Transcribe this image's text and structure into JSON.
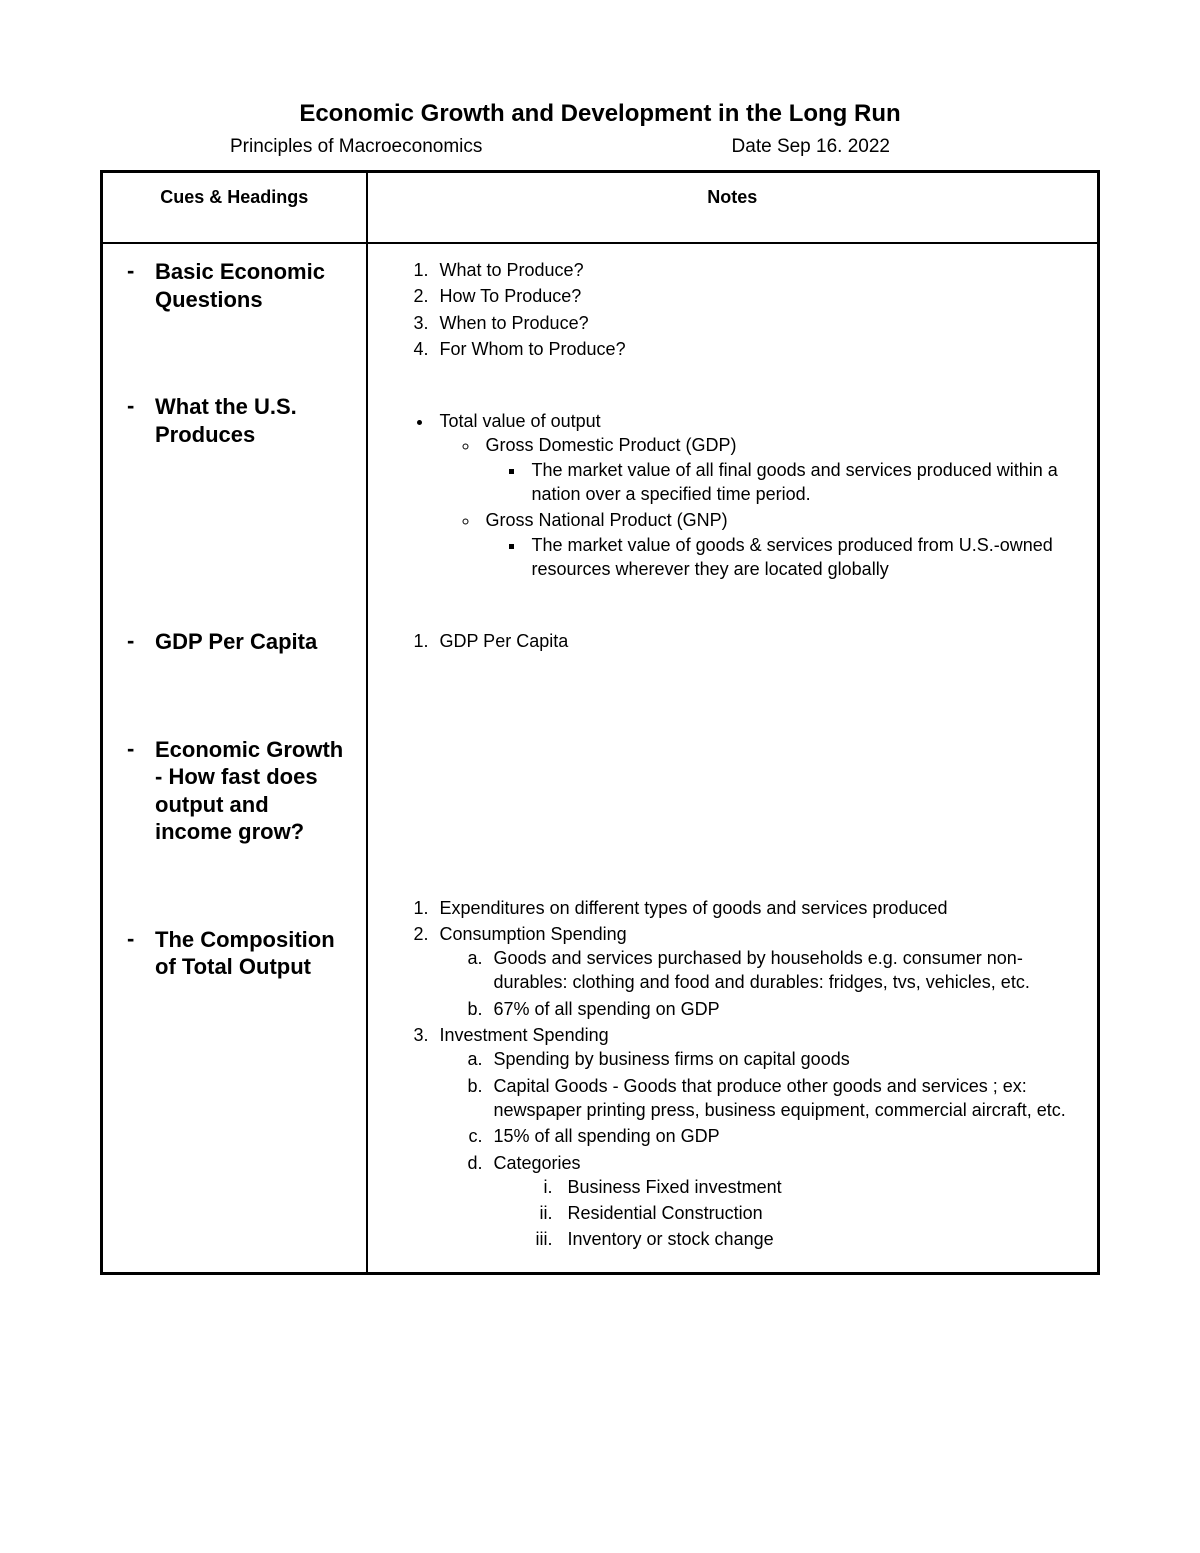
{
  "title": "Economic Growth and Development in the Long Run",
  "course": "Principles of Macroeconomics",
  "date": "Date Sep 16. 2022",
  "headers": {
    "cues": "Cues & Headings",
    "notes": "Notes"
  },
  "cues": {
    "c1": "Basic Economic Questions",
    "c2": "What the U.S. Produces",
    "c3": "GDP Per Capita",
    "c4": "Economic Growth - How fast does output and income grow?",
    "c5": "The Composition of Total Output"
  },
  "notes": {
    "q1": "What to Produce?",
    "q2": "How To Produce?",
    "q3": "When to Produce?",
    "q4": "For Whom to Produce?",
    "tv": "Total value of output",
    "gdp": "Gross Domestic Product (GDP)",
    "gdp_def": "The market value of all final goods and services produced within a nation over a specified time period.",
    "gnp": "Gross National Product (GNP)",
    "gnp_def": "The market value of goods & services produced from U.S.-owned resources wherever they are located globally",
    "gdppc": "GDP Per Capita",
    "comp1": "Expenditures on different types of goods and services produced",
    "comp2": "Consumption Spending",
    "comp2a": "Goods and services purchased by households e.g. consumer non-durables: clothing and food and durables: fridges, tvs, vehicles, etc.",
    "comp2b": "67% of all spending on GDP",
    "comp3": "Investment Spending",
    "comp3a": "Spending by business firms on capital goods",
    "comp3b": "Capital Goods - Goods that produce other goods and services ; ex: newspaper printing press, business equipment, commercial aircraft, etc.",
    "comp3c": "15% of all spending on GDP",
    "comp3d": "Categories",
    "comp3d1": "Business Fixed investment",
    "comp3d2": "Residential Construction",
    "comp3d3": "Inventory or stock change"
  }
}
